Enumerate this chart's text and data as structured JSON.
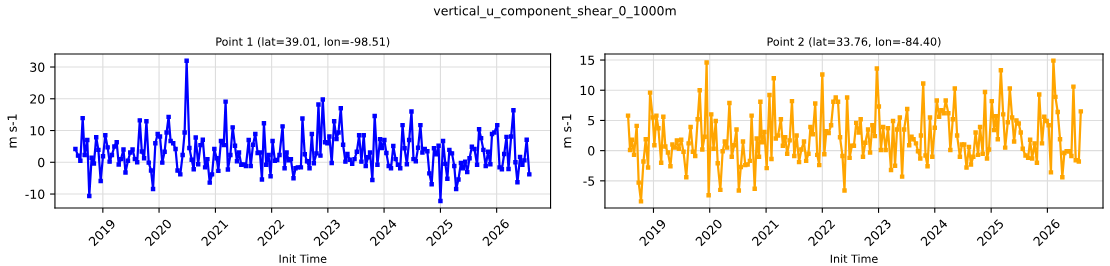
{
  "chart_data": [
    {
      "type": "line",
      "title": "Point 1 (lat=39.01, lon=-98.51)",
      "xlabel": "Init Time",
      "ylabel": "m s-1",
      "annotations": [
        "vertical_u_component_shear_0_1000m"
      ],
      "marker": "square",
      "grid": true,
      "xlim": [
        "2018-02-24",
        "2026-12-17"
      ],
      "xticks": [
        "2019",
        "2020",
        "2021",
        "2022",
        "2023",
        "2024",
        "2025",
        "2026"
      ],
      "ylim": [
        -14.4,
        34.1
      ],
      "yticks": [
        -10,
        0,
        10,
        20,
        30
      ],
      "series": [
        {
          "color": "#0000ff",
          "x": [
            "2018-07-07",
            "2018-07-24",
            "2018-08-08",
            "2018-08-23",
            "2018-09-05",
            "2018-09-22",
            "2018-10-05",
            "2018-10-20",
            "2018-11-04",
            "2018-11-19",
            "2018-12-03",
            "2018-12-18",
            "2019-01-02",
            "2019-01-17",
            "2019-02-01",
            "2019-02-14",
            "2019-03-01",
            "2019-03-17",
            "2019-04-01",
            "2019-04-14",
            "2019-04-29",
            "2019-05-15",
            "2019-05-28",
            "2019-06-13",
            "2019-06-28",
            "2019-07-13",
            "2019-07-28",
            "2019-08-12",
            "2019-08-29",
            "2019-09-11",
            "2019-09-26",
            "2019-10-11",
            "2019-10-26",
            "2019-11-10",
            "2019-11-23",
            "2019-12-08",
            "2019-12-23",
            "2020-01-07",
            "2020-01-22",
            "2020-02-06",
            "2020-02-19",
            "2020-03-03",
            "2020-03-16",
            "2020-04-02",
            "2020-04-17",
            "2020-04-30",
            "2020-05-18",
            "2020-06-02",
            "2020-06-15",
            "2020-06-28",
            "2020-07-16",
            "2020-07-31",
            "2020-08-13",
            "2020-08-26",
            "2020-09-11",
            "2020-09-26",
            "2020-10-11",
            "2020-10-26",
            "2020-11-10",
            "2020-11-25",
            "2020-12-10",
            "2020-12-25",
            "2021-01-09",
            "2021-01-20",
            "2021-02-06",
            "2021-02-24",
            "2021-03-08",
            "2021-03-23",
            "2021-04-08",
            "2021-04-23",
            "2021-05-08",
            "2021-05-21",
            "2021-06-03",
            "2021-06-18",
            "2021-07-03",
            "2021-07-18",
            "2021-08-05",
            "2021-08-18",
            "2021-09-02",
            "2021-09-17",
            "2021-10-02",
            "2021-10-17",
            "2021-10-30",
            "2021-11-12",
            "2021-11-27",
            "2021-12-12",
            "2021-12-25",
            "2022-01-07",
            "2022-01-22",
            "2022-02-06",
            "2022-02-21",
            "2022-03-13",
            "2022-03-26",
            "2022-04-08",
            "2022-04-21",
            "2022-05-06",
            "2022-05-23",
            "2022-06-05",
            "2022-06-20",
            "2022-07-10",
            "2022-07-20",
            "2022-08-04",
            "2022-08-19",
            "2022-09-04",
            "2022-09-19",
            "2022-10-02",
            "2022-10-19",
            "2022-11-01",
            "2022-11-14",
            "2022-11-29",
            "2022-12-14",
            "2022-12-29",
            "2023-01-11",
            "2023-01-26",
            "2023-02-11",
            "2023-02-26",
            "2023-03-11",
            "2023-03-26",
            "2023-04-10",
            "2023-04-25",
            "2023-05-08",
            "2023-05-23",
            "2023-06-08",
            "2023-06-23",
            "2023-07-08",
            "2023-07-23",
            "2023-08-07",
            "2023-08-22",
            "2023-09-04",
            "2023-09-19",
            "2023-10-02",
            "2023-10-17",
            "2023-11-01",
            "2023-11-19",
            "2023-12-06",
            "2023-12-19",
            "2024-01-03",
            "2024-01-16",
            "2024-01-31",
            "2024-02-15",
            "2024-03-01",
            "2024-03-16",
            "2024-03-31",
            "2024-04-15",
            "2024-04-30",
            "2024-05-13",
            "2024-05-28",
            "2024-06-12",
            "2024-06-27",
            "2024-07-10",
            "2024-07-25",
            "2024-08-09",
            "2024-08-24",
            "2024-09-06",
            "2024-09-21",
            "2024-10-08",
            "2024-10-21",
            "2024-11-05",
            "2024-11-20",
            "2024-12-05",
            "2024-12-20",
            "2025-01-01",
            "2025-01-18",
            "2025-02-02",
            "2025-02-15",
            "2025-02-28",
            "2025-03-17",
            "2025-04-01",
            "2025-04-13",
            "2025-04-28",
            "2025-05-14",
            "2025-05-28",
            "2025-06-11",
            "2025-06-24",
            "2025-07-09",
            "2025-07-24",
            "2025-08-10",
            "2025-08-27",
            "2025-09-09",
            "2025-09-22",
            "2025-10-07",
            "2025-10-22",
            "2025-11-06",
            "2025-11-21",
            "2025-12-02",
            "2025-12-17",
            "2026-01-05",
            "2026-01-20",
            "2026-02-04",
            "2026-02-19",
            "2026-03-06",
            "2026-03-19",
            "2026-04-05",
            "2026-04-20",
            "2026-05-03",
            "2026-05-16",
            "2026-06-02",
            "2026-06-17",
            "2026-06-30",
            "2026-07-15",
            "2026-08-01"
          ],
          "values": [
            4.2,
            2.1,
            0.5,
            13.9,
            2.3,
            7.0,
            -10.6,
            1.4,
            -0.4,
            7.9,
            3.9,
            -5.9,
            1.9,
            8.5,
            4.7,
            0.2,
            2.3,
            5.0,
            6.3,
            -0.7,
            1.0,
            4.0,
            -3.2,
            0.5,
            3.1,
            4.0,
            1.0,
            0.0,
            13.2,
            3.4,
            1.3,
            12.9,
            -0.1,
            -2.6,
            -8.4,
            6.0,
            8.9,
            8.1,
            -0.1,
            3.3,
            9.4,
            14.3,
            6.7,
            6.0,
            4.2,
            -2.6,
            -3.8,
            2.3,
            9.4,
            32.0,
            4.5,
            0.8,
            -2.2,
            7.8,
            -0.6,
            5.4,
            7.1,
            -1.6,
            1.0,
            -6.4,
            -3.8,
            4.2,
            1.3,
            -2.7,
            6.7,
            5.4,
            19.1,
            -2.3,
            2.3,
            11.0,
            5.2,
            0.3,
            3.1,
            -0.8,
            -0.7,
            -1.2,
            7.0,
            -1.2,
            5.5,
            8.9,
            2.9,
            3.1,
            -5.4,
            12.3,
            -0.8,
            2.3,
            -4.4,
            6.7,
            0.5,
            0.7,
            2.3,
            11.3,
            -1.9,
            3.1,
            0.6,
            1.0,
            -5.0,
            -1.9,
            -1.6,
            -1.6,
            13.8,
            2.5,
            0.3,
            -1.9,
            8.9,
            -0.3,
            2.8,
            18.2,
            2.1,
            19.8,
            6.3,
            6.0,
            8.1,
            -0.2,
            12.9,
            7.3,
            9.4,
            17.0,
            5.5,
            0.2,
            2.6,
            0.8,
            -0.5,
            1.0,
            3.3,
            8.5,
            0.2,
            8.5,
            -1.2,
            1.6,
            3.1,
            -5.6,
            14.6,
            -0.8,
            7.3,
            4.5,
            7.0,
            2.9,
            -1.2,
            -1.9,
            5.1,
            1.0,
            -0.8,
            -1.9,
            11.7,
            4.4,
            -0.6,
            7.0,
            16.0,
            1.0,
            0.3,
            4.6,
            11.7,
            3.1,
            4.2,
            3.5,
            -3.5,
            -6.9,
            4.4,
            2.5,
            5.2,
            -12.2,
            6.7,
            -0.5,
            -5.2,
            3.9,
            2.8,
            -1.2,
            -8.4,
            -5.4,
            -0.2,
            -1.9,
            0.2,
            -3.1,
            1.3,
            4.9,
            4.2,
            -0.8,
            10.4,
            7.6,
            3.9,
            -1.2,
            3.3,
            -0.6,
            8.9,
            9.4,
            11.7,
            -1.6,
            -2.2,
            2.6,
            8.0,
            -2.1,
            8.1,
            16.4,
            0.0,
            -6.3,
            1.7,
            -0.8,
            0.6,
            7.1,
            -3.8
          ]
        }
      ]
    },
    {
      "type": "line",
      "title": "Point 2 (lat=33.76, lon=-84.40)",
      "xlabel": "Init Time",
      "ylabel": "m s-1",
      "marker": "square",
      "grid": true,
      "xlim": [
        "2018-02-20",
        "2026-12-28"
      ],
      "xticks": [
        "2019",
        "2020",
        "2021",
        "2022",
        "2023",
        "2024",
        "2025",
        "2026"
      ],
      "ylim": [
        -9.5,
        16.0
      ],
      "yticks": [
        -5,
        0,
        5,
        10,
        15
      ],
      "series": [
        {
          "color": "#ffa500",
          "x": [
            "2018-07-20",
            "2018-08-02",
            "2018-08-14",
            "2018-08-28",
            "2018-09-14",
            "2018-09-27",
            "2018-10-12",
            "2018-10-28",
            "2018-11-12",
            "2018-11-27",
            "2018-12-10",
            "2018-12-27",
            "2019-01-07",
            "2019-01-20",
            "2019-02-02",
            "2019-02-20",
            "2019-03-06",
            "2019-03-19",
            "2019-04-05",
            "2019-04-21",
            "2019-05-04",
            "2019-05-19",
            "2019-06-02",
            "2019-06-15",
            "2019-06-30",
            "2019-07-15",
            "2019-08-02",
            "2019-08-17",
            "2019-08-30",
            "2019-09-14",
            "2019-09-29",
            "2019-10-15",
            "2019-10-28",
            "2019-11-14",
            "2019-11-29",
            "2019-12-12",
            "2019-12-25",
            "2020-01-11",
            "2020-01-26",
            "2020-02-09",
            "2020-02-22",
            "2020-03-10",
            "2020-03-25",
            "2020-04-08",
            "2020-04-23",
            "2020-05-08",
            "2020-05-23",
            "2020-06-08",
            "2020-06-23",
            "2020-07-08",
            "2020-07-21",
            "2020-08-04",
            "2020-08-19",
            "2020-09-03",
            "2020-09-18",
            "2020-09-29",
            "2020-10-19",
            "2020-11-01",
            "2020-11-16",
            "2020-11-25",
            "2020-12-05",
            "2020-12-21",
            "2021-01-05",
            "2021-01-23",
            "2021-02-05",
            "2021-02-20",
            "2021-03-05",
            "2021-03-20",
            "2021-04-07",
            "2021-04-20",
            "2021-05-05",
            "2021-05-18",
            "2021-06-03",
            "2021-06-18",
            "2021-07-03",
            "2021-07-18",
            "2021-08-03",
            "2021-08-18",
            "2021-09-04",
            "2021-09-18",
            "2021-10-03",
            "2021-10-16",
            "2021-10-31",
            "2021-11-16",
            "2021-11-29",
            "2021-12-12",
            "2022-01-01",
            "2022-01-14",
            "2022-01-27",
            "2022-02-11",
            "2022-02-27",
            "2022-03-14",
            "2022-03-29",
            "2022-04-13",
            "2022-04-26",
            "2022-05-12",
            "2022-05-25",
            "2022-06-11",
            "2022-06-27",
            "2022-07-12",
            "2022-07-25",
            "2022-08-09",
            "2022-08-25",
            "2022-09-07",
            "2022-09-22",
            "2022-10-07",
            "2022-10-25",
            "2022-11-07",
            "2022-11-22",
            "2022-12-08",
            "2022-12-21",
            "2023-01-03",
            "2023-01-16",
            "2023-01-31",
            "2023-02-16",
            "2023-03-03",
            "2023-03-23",
            "2023-04-05",
            "2023-04-18",
            "2023-05-01",
            "2023-05-19",
            "2023-06-03",
            "2023-06-16",
            "2023-07-06",
            "2023-07-19",
            "2023-08-03",
            "2023-08-16",
            "2023-09-01",
            "2023-09-14",
            "2023-09-29",
            "2023-10-03",
            "2023-10-18",
            "2023-11-02",
            "2023-11-15",
            "2023-12-01",
            "2023-12-16",
            "2024-01-01",
            "2024-01-14",
            "2024-01-29",
            "2024-02-13",
            "2024-02-28",
            "2024-03-12",
            "2024-03-29",
            "2024-04-11",
            "2024-04-27",
            "2024-05-10",
            "2024-05-25",
            "2024-06-12",
            "2024-06-25",
            "2024-07-10",
            "2024-07-25",
            "2024-08-10",
            "2024-08-23",
            "2024-09-07",
            "2024-09-22",
            "2024-10-08",
            "2024-10-21",
            "2024-11-07",
            "2024-11-22",
            "2024-12-05",
            "2024-12-18",
            "2025-01-05",
            "2025-01-20",
            "2025-02-02",
            "2025-02-13",
            "2025-03-05",
            "2025-03-20",
            "2025-04-02",
            "2025-04-19",
            "2025-05-02",
            "2025-05-17",
            "2025-05-30",
            "2025-06-14",
            "2025-06-29",
            "2025-07-12",
            "2025-07-25",
            "2025-08-12",
            "2025-08-29",
            "2025-09-11",
            "2025-09-24",
            "2025-10-10",
            "2025-10-25",
            "2025-11-09",
            "2025-11-27",
            "2025-12-12",
            "2025-12-27",
            "2026-01-09",
            "2026-01-24",
            "2026-02-09",
            "2026-02-22",
            "2026-03-09",
            "2026-03-24",
            "2026-04-08",
            "2026-04-21",
            "2026-05-06",
            "2026-05-22",
            "2026-06-06",
            "2026-06-19",
            "2026-07-04",
            "2026-07-24",
            "2026-08-06"
          ],
          "values": [
            5.8,
            0.1,
            1.8,
            -0.7,
            4.1,
            -5.3,
            -8.4,
            -1.8,
            1.9,
            -2.8,
            9.6,
            5.5,
            0.9,
            5.8,
            3.7,
            -2.0,
            5.6,
            0.7,
            -0.3,
            -2.6,
            1.0,
            0.5,
            1.7,
            0.3,
            1.8,
            -0.2,
            -4.4,
            1.2,
            3.9,
            -0.2,
            -0.9,
            5.2,
            10.0,
            0.2,
            2.3,
            14.6,
            -7.4,
            6.0,
            0.3,
            4.9,
            -2.1,
            -6.5,
            -0.1,
            1.5,
            0.5,
            7.9,
            -1.0,
            0.9,
            3.5,
            -6.6,
            -2.7,
            1.5,
            -2.4,
            -2.3,
            -1.7,
            5.8,
            -6.3,
            2.0,
            -1.0,
            8.1,
            1.4,
            3.1,
            -2.9,
            9.2,
            -1.4,
            12.0,
            2.0,
            2.5,
            5.2,
            0.8,
            2.2,
            -0.5,
            1.7,
            8.2,
            -0.9,
            2.5,
            -1.9,
            0.2,
            1.5,
            -1.7,
            -0.5,
            3.9,
            2.7,
            7.8,
            -0.7,
            -2.4,
            12.6,
            -0.6,
            3.2,
            2.9,
            4.2,
            8.1,
            8.8,
            8.1,
            2.2,
            -0.9,
            -6.6,
            8.8,
            -1.2,
            0.8,
            0.8,
            4.6,
            3.0,
            5.2,
            -1.0,
            1.3,
            3.5,
            -0.3,
            4.2,
            2.4,
            13.6,
            7.3,
            0.1,
            3.9,
            0.1,
            3.7,
            -3.2,
            4.9,
            -2.5,
            3.5,
            5.5,
            -4.3,
            3.5,
            6.9,
            0.9,
            2.3,
            1.9,
            1.2,
            -0.1,
            -1.3,
            2.5,
            11.1,
            -0.8,
            -2.6,
            5.5,
            -1.0,
            3.8,
            8.3,
            5.6,
            6.7,
            6.2,
            8.3,
            6.2,
            0.1,
            5.2,
            10.3,
            2.5,
            -1.0,
            1.0,
            1.0,
            -2.8,
            0.6,
            -2.3,
            -1.0,
            3.0,
            -0.7,
            3.9,
            -0.5,
            9.7,
            -1.3,
            0.2,
            8.2,
            3.4,
            5.7,
            1.9,
            13.3,
            6.0,
            0.5,
            4.7,
            10.3,
            5.5,
            1.5,
            5.0,
            4.5,
            3.0,
            0.3,
            -0.8,
            -1.2,
            1.8,
            -1.3,
            1.2,
            -2.0,
            9.3,
            1.2,
            5.6,
            4.9,
            4.2,
            -3.6,
            14.9,
            8.9,
            6.4,
            1.9,
            -4.4,
            -0.4,
            -0.1,
            -0.1,
            -0.9,
            10.6,
            -1.6,
            -1.8,
            6.5
          ]
        }
      ]
    }
  ]
}
